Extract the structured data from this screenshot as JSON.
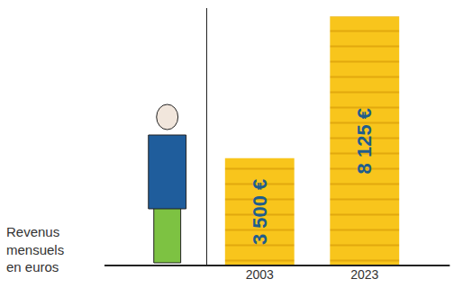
{
  "chart_data": {
    "type": "bar",
    "y_label": "Revenus mensuels en euros",
    "categories": [
      "2003",
      "2023"
    ],
    "values": [
      3500,
      8125
    ],
    "value_labels": [
      "3 500 €",
      "8 125 €"
    ],
    "color": "#f8c51c",
    "ylim": [
      0,
      8400
    ],
    "data_labels": true,
    "tick_labels": "x"
  }
}
